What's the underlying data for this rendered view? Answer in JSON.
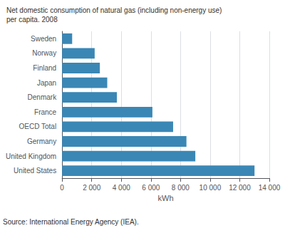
{
  "chart_data": {
    "type": "bar",
    "orientation": "horizontal",
    "title": "Net domestic consumption of natural gas (including non-energy use)",
    "subtitle": "per capita. 2008",
    "categories": [
      "United States",
      "United Kingdom",
      "Germany",
      "OECD Total",
      "France",
      "Denmark",
      "Japan",
      "Finland",
      "Norway",
      "Sweden"
    ],
    "values": [
      13000,
      9000,
      8400,
      7500,
      6100,
      3700,
      3050,
      2550,
      2200,
      680
    ],
    "color": "#3a87b5",
    "xlabel": "kWh",
    "xlim": [
      0,
      14000
    ],
    "xticks": [
      0,
      {
        "value": 2000,
        "label": "2 000"
      },
      {
        "value": 4000,
        "label": "4 000"
      },
      {
        "value": 6000,
        "label": "6 000"
      },
      {
        "value": 8000,
        "label": "8 000"
      },
      {
        "value": 10000,
        "label": "10 000"
      },
      {
        "value": 12000,
        "label": "12 000"
      },
      {
        "value": 14000,
        "label": "14 000"
      }
    ],
    "grid": true,
    "annotations": [
      "Source: International Energy Agency (IEA)."
    ]
  }
}
